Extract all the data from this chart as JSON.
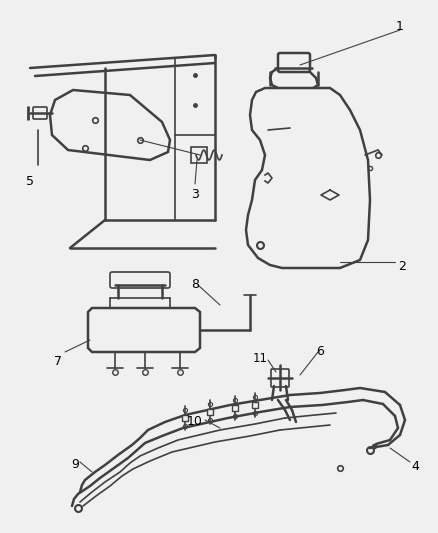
{
  "bg_color": "#f0f0f0",
  "line_color": "#404040",
  "label_color": "#000000",
  "figsize": [
    4.38,
    5.33
  ],
  "dpi": 100
}
